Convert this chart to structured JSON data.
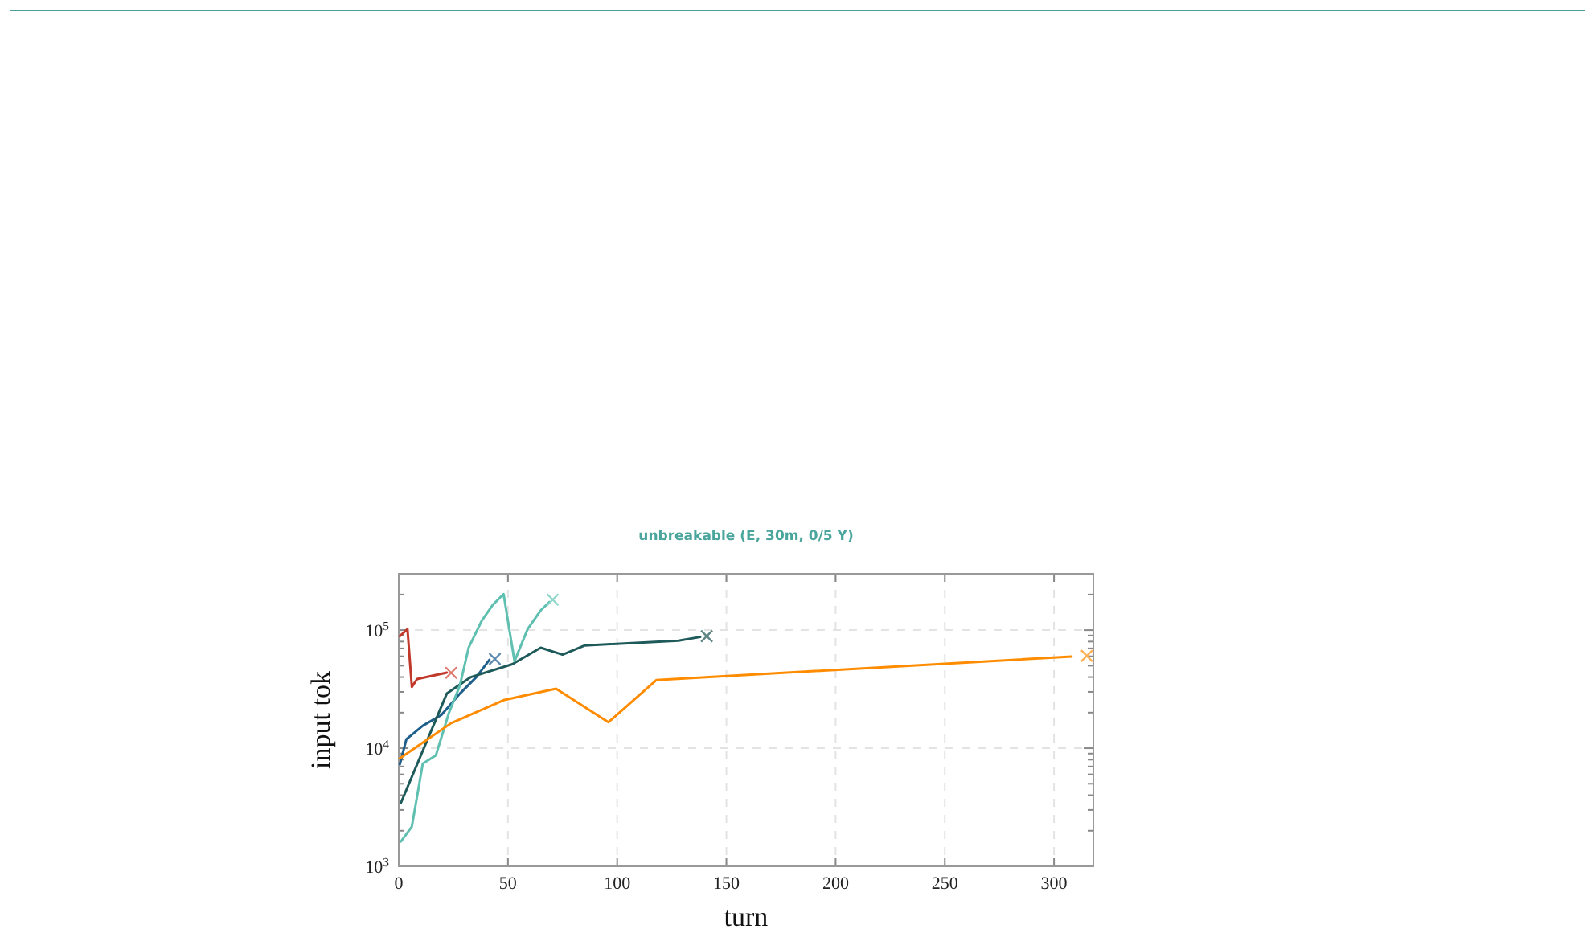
{
  "chart_data": {
    "type": "line",
    "title": "unbreakable (E, 30m, 0/5 Y)",
    "xlabel": "turn",
    "ylabel": "input tok",
    "log": "y",
    "grid": true,
    "line_style": "solid",
    "xlim": [
      0,
      318
    ],
    "xticks": [
      0,
      50,
      100,
      150,
      200,
      250,
      300
    ],
    "ylim": [
      1000,
      300000
    ],
    "yticks": [
      {
        "value": 1000,
        "label": "10$^{3}$"
      },
      {
        "value": 2000,
        "label": null
      },
      {
        "value": 3000,
        "label": null
      },
      {
        "value": 4000,
        "label": null
      },
      {
        "value": 5000,
        "label": null
      },
      {
        "value": 6000,
        "label": null
      },
      {
        "value": 7000,
        "label": null
      },
      {
        "value": 8000,
        "label": null
      },
      {
        "value": 9000,
        "label": null
      },
      {
        "value": 10000,
        "label": "10$^{4}$"
      },
      {
        "value": 20000,
        "label": null
      },
      {
        "value": 30000,
        "label": null
      },
      {
        "value": 40000,
        "label": null
      },
      {
        "value": 50000,
        "label": null
      },
      {
        "value": 60000,
        "label": null
      },
      {
        "value": 70000,
        "label": null
      },
      {
        "value": 80000,
        "label": null
      },
      {
        "value": 90000,
        "label": null
      },
      {
        "value": 100000,
        "label": "10$^{5}$"
      },
      {
        "value": 200000,
        "label": null
      },
      {
        "value": 300000,
        "label": null
      }
    ],
    "series": [
      {
        "color": "#c0392b",
        "x": [
          0.5,
          4,
          6,
          8.4,
          22
        ],
        "values": [
          89000,
          102000,
          33000,
          38500,
          43700
        ]
      },
      {
        "color": "#1f5f8b",
        "x": [
          0.5,
          3.5,
          11,
          19.5,
          28,
          35.5,
          41.5
        ],
        "values": [
          7300,
          11900,
          15500,
          19100,
          29000,
          40000,
          56000
        ]
      },
      {
        "color": "#1e5a5a",
        "x": [
          1,
          22,
          33,
          52,
          65,
          75,
          85,
          128,
          138
        ],
        "values": [
          3450,
          29000,
          40000,
          51500,
          71000,
          62000,
          74000,
          81500,
          87500
        ]
      },
      {
        "color": "#5fbfb0",
        "x": [
          1,
          6,
          11,
          17,
          23,
          28,
          32,
          38,
          43,
          48,
          53,
          59,
          65,
          69
        ],
        "values": [
          1620,
          2170,
          7400,
          8700,
          20000,
          34000,
          71000,
          120000,
          163000,
          202000,
          54500,
          102000,
          147000,
          173000
        ]
      },
      {
        "color": "#ff8c00",
        "x": [
          0.5,
          24,
          48,
          72,
          96,
          118,
          308
        ],
        "values": [
          8200,
          16300,
          25500,
          31900,
          16600,
          37800,
          59700
        ]
      },
      {
        "type": "scatter",
        "marker": "cross",
        "x": [
          24,
          44,
          141,
          70.5,
          315
        ],
        "values": [
          43500,
          57000,
          89000,
          181000,
          60500
        ],
        "colors": [
          "#e07a70",
          "#5a87ad",
          "#5f8585",
          "#8fd6ca",
          "#ffb255"
        ]
      }
    ]
  }
}
